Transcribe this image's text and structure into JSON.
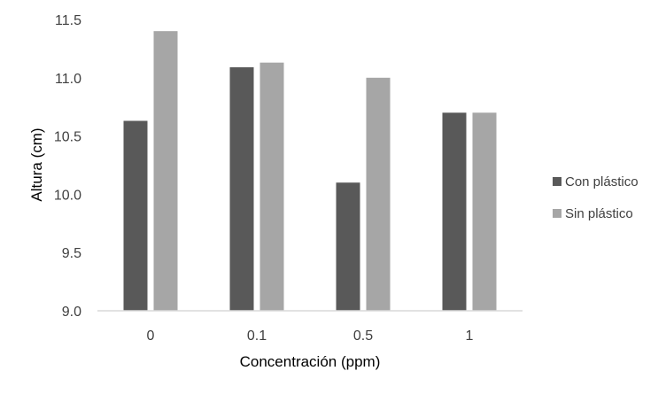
{
  "chart_data": {
    "type": "bar",
    "categories": [
      "0",
      "0.1",
      "0.5",
      "1"
    ],
    "series": [
      {
        "name": "Con plástico",
        "values": [
          10.63,
          11.09,
          10.1,
          10.7
        ]
      },
      {
        "name": "Sin plástico",
        "values": [
          11.4,
          11.13,
          11.0,
          10.7
        ]
      }
    ],
    "title": "",
    "xlabel": "Concentración (ppm)",
    "ylabel": "Altura (cm)",
    "ylim": [
      9.0,
      11.5
    ],
    "yticks": [
      "9.0",
      "9.5",
      "10.0",
      "10.5",
      "11.0",
      "11.5"
    ],
    "grid": false,
    "legend": "right",
    "colors": [
      "#595959",
      "#a6a6a6"
    ]
  }
}
